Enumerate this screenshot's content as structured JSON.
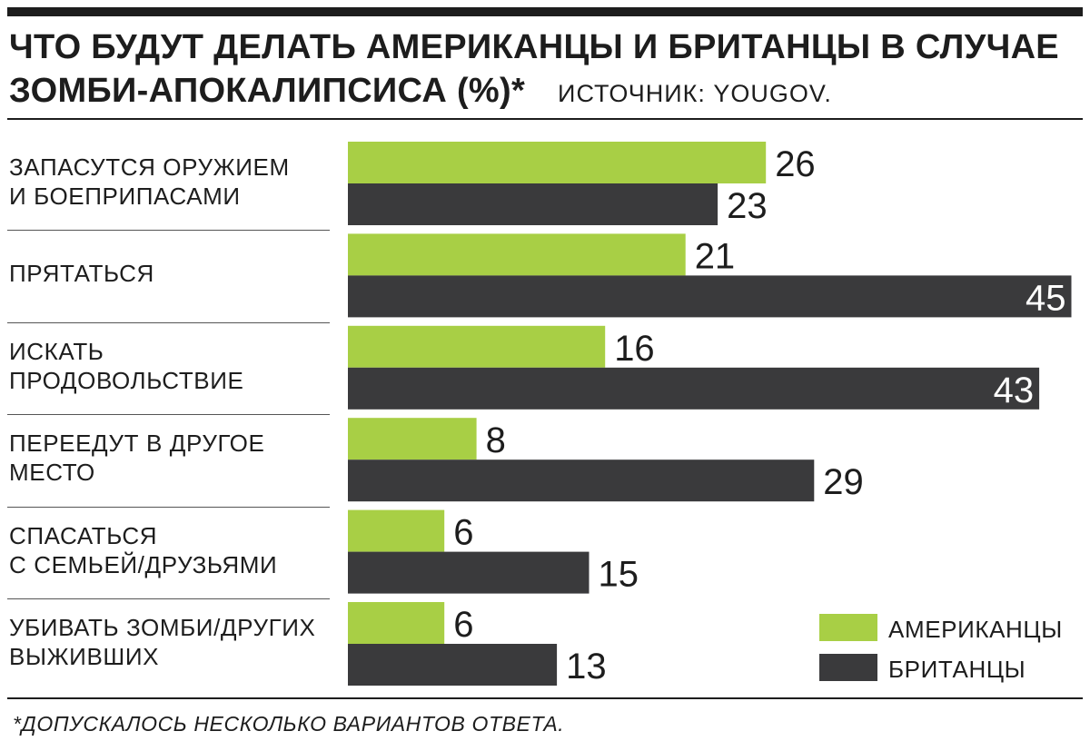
{
  "title": "ЧТО БУДУТ ДЕЛАТЬ АМЕРИКАНЦЫ И БРИТАНЦЫ В СЛУЧАЕ ЗОМБИ-АПОКАЛИПСИСА (%)*",
  "source": "ИСТОЧНИК: YOUGOV.",
  "footnote": "*ДОПУСКАЛОСЬ НЕСКОЛЬКО ВАРИАНТОВ ОТВЕТА.",
  "colors": {
    "americans": "#a8cf45",
    "british": "#3a3a3c",
    "text": "#1d1d1d"
  },
  "chart_data": {
    "type": "bar",
    "orientation": "horizontal",
    "categories": [
      "ЗАПАСУТСЯ ОРУЖИЕМ\nИ БОЕПРИПАСАМИ",
      "ПРЯТАТЬСЯ",
      "ИСКАТЬ\nПРОДОВОЛЬСТВИЕ",
      "ПЕРЕЕДУТ В ДРУГОЕ\nМЕСТО",
      "СПАСАТЬСЯ\nС СЕМЬЕЙ/ДРУЗЬЯМИ",
      "УБИВАТЬ ЗОМБИ/ДРУГИХ\nВЫЖИВШИХ"
    ],
    "series": [
      {
        "name": "АМЕРИКАНЦЫ",
        "values": [
          26,
          21,
          16,
          8,
          6,
          6
        ]
      },
      {
        "name": "БРИТАНЦЫ",
        "values": [
          23,
          45,
          43,
          29,
          15,
          13
        ]
      }
    ],
    "xlim": [
      0,
      45
    ],
    "grid": false,
    "legend": "bottom-right"
  }
}
